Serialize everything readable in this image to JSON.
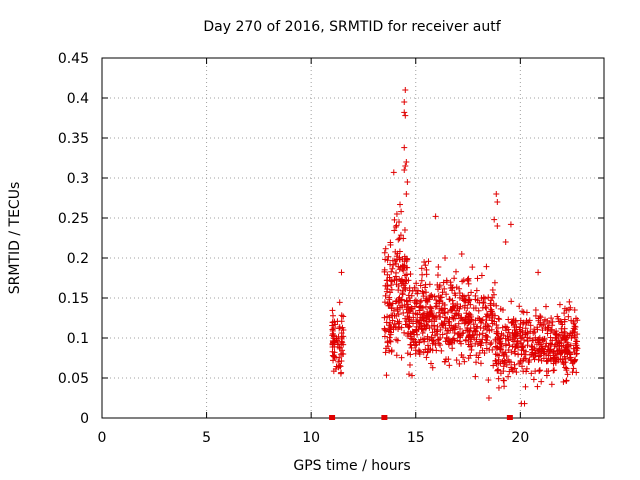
{
  "chart_data": {
    "type": "scatter",
    "title": "Day 270 of 2016, SRMTID for receiver autf",
    "xlabel": "GPS time / hours",
    "ylabel": "SRMTID / TECUs",
    "xlim": [
      0,
      24
    ],
    "ylim": [
      0,
      0.45
    ],
    "x_ticks": [
      "0",
      "5",
      "10",
      "15",
      "20"
    ],
    "y_ticks": [
      "0",
      "0.05",
      "0.1",
      "0.15",
      "0.2",
      "0.25",
      "0.3",
      "0.35",
      "0.4",
      "0.45"
    ],
    "grid": true,
    "marker": "plus",
    "color": "#e00000",
    "zero_markers_x": [
      11.0,
      13.5,
      19.5
    ],
    "segments": [
      {
        "x_start": 11.0,
        "x_end": 11.05,
        "y_min": 0.05,
        "y_max": 0.155,
        "count": 18,
        "seed": 11
      },
      {
        "x_start": 11.05,
        "x_end": 11.55,
        "y_min": 0.03,
        "y_max": 0.16,
        "count": 55,
        "seed": 12
      },
      {
        "x_start": 13.5,
        "x_end": 13.9,
        "y_min": 0.03,
        "y_max": 0.26,
        "count": 70,
        "seed": 13
      },
      {
        "x_start": 13.9,
        "x_end": 14.6,
        "y_min": 0.05,
        "y_max": 0.28,
        "count": 110,
        "seed": 14
      },
      {
        "x_start": 14.6,
        "x_end": 16.5,
        "y_min": 0.04,
        "y_max": 0.21,
        "count": 260,
        "seed": 15
      },
      {
        "x_start": 16.5,
        "x_end": 18.8,
        "y_min": 0.04,
        "y_max": 0.2,
        "count": 260,
        "seed": 16
      },
      {
        "x_start": 18.8,
        "x_end": 20.2,
        "y_min": 0.03,
        "y_max": 0.16,
        "count": 160,
        "seed": 17
      },
      {
        "x_start": 20.2,
        "x_end": 22.75,
        "y_min": 0.03,
        "y_max": 0.15,
        "count": 300,
        "seed": 18
      }
    ],
    "highlights": [
      {
        "x": 13.95,
        "y": 0.307
      },
      {
        "x": 14.5,
        "y": 0.41
      },
      {
        "x": 14.45,
        "y": 0.395
      },
      {
        "x": 14.45,
        "y": 0.382
      },
      {
        "x": 14.5,
        "y": 0.378
      },
      {
        "x": 14.45,
        "y": 0.338
      },
      {
        "x": 14.55,
        "y": 0.32
      },
      {
        "x": 14.5,
        "y": 0.315
      },
      {
        "x": 14.45,
        "y": 0.31
      },
      {
        "x": 14.6,
        "y": 0.295
      },
      {
        "x": 14.55,
        "y": 0.28
      },
      {
        "x": 14.3,
        "y": 0.258
      },
      {
        "x": 14.1,
        "y": 0.255
      },
      {
        "x": 14.2,
        "y": 0.245
      },
      {
        "x": 15.95,
        "y": 0.252
      },
      {
        "x": 18.85,
        "y": 0.28
      },
      {
        "x": 18.9,
        "y": 0.27
      },
      {
        "x": 18.75,
        "y": 0.248
      },
      {
        "x": 18.9,
        "y": 0.24
      },
      {
        "x": 19.55,
        "y": 0.242
      },
      {
        "x": 19.3,
        "y": 0.22
      },
      {
        "x": 11.45,
        "y": 0.182
      },
      {
        "x": 20.85,
        "y": 0.182
      },
      {
        "x": 18.5,
        "y": 0.025
      },
      {
        "x": 20.05,
        "y": 0.018
      },
      {
        "x": 20.2,
        "y": 0.018
      },
      {
        "x": 22.6,
        "y": 0.135
      },
      {
        "x": 16.4,
        "y": 0.2
      },
      {
        "x": 17.2,
        "y": 0.205
      },
      {
        "x": 15.4,
        "y": 0.195
      }
    ]
  }
}
